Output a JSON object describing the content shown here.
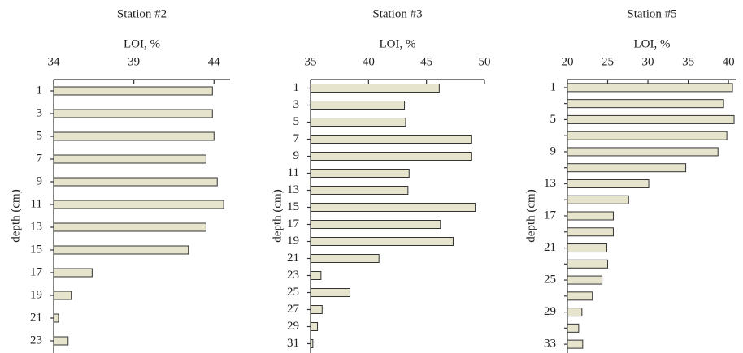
{
  "chart_data": [
    {
      "type": "bar",
      "orientation": "horizontal",
      "title": "Station #2",
      "x_label": "LOI, %",
      "y_label": "depth (cm)",
      "categories": [
        "1",
        "3",
        "5",
        "7",
        "9",
        "11",
        "13",
        "15",
        "17",
        "19",
        "21",
        "23"
      ],
      "values": [
        43.9,
        43.9,
        44.0,
        43.5,
        44.2,
        44.6,
        43.5,
        42.4,
        36.4,
        35.1,
        34.3,
        34.9
      ],
      "color": "#e6e4cc",
      "xlim": [
        34,
        45
      ],
      "xticks": [
        34,
        39,
        44
      ]
    },
    {
      "type": "bar",
      "orientation": "horizontal",
      "title": "Station #3",
      "x_label": "LOI, %",
      "y_label": "depth (cm)",
      "categories": [
        "1",
        "3",
        "5",
        "7",
        "9",
        "11",
        "13",
        "15",
        "17",
        "19",
        "21",
        "23",
        "25",
        "27",
        "29",
        "31"
      ],
      "values": [
        46.1,
        43.1,
        43.2,
        48.9,
        48.9,
        43.5,
        43.4,
        49.2,
        46.2,
        47.3,
        40.9,
        35.9,
        38.4,
        36.0,
        35.6,
        35.2
      ],
      "color": "#e6e4cc",
      "xlim": [
        35,
        50
      ],
      "xticks": [
        35,
        40,
        45,
        50
      ]
    },
    {
      "type": "bar",
      "orientation": "horizontal",
      "title": "Station #5",
      "x_label": "LOI, %",
      "y_label": "depth (cm)",
      "categories": [
        "1",
        null,
        "5",
        null,
        "9",
        null,
        "13",
        null,
        "17",
        null,
        "21",
        null,
        "25",
        null,
        "29",
        null,
        "33"
      ],
      "values": [
        40.5,
        39.4,
        40.7,
        39.8,
        38.7,
        34.7,
        30.1,
        27.6,
        25.7,
        25.7,
        24.9,
        25.0,
        24.3,
        23.1,
        21.8,
        21.4,
        21.9
      ],
      "color": "#e6e4cc",
      "xlim": [
        20,
        41
      ],
      "xticks": [
        20,
        25,
        30,
        35,
        40
      ]
    }
  ]
}
